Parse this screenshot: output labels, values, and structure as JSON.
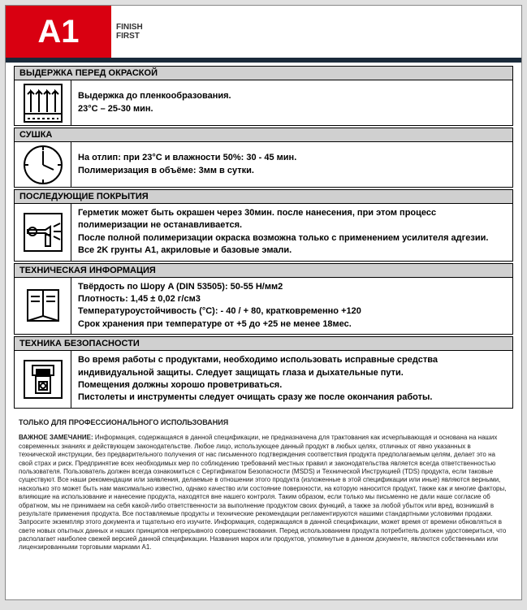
{
  "colors": {
    "brand_red": "#d90011",
    "dark_bar": "#1a2a3a",
    "section_header_bg": "#d0d0d0",
    "page_bg": "#ffffff",
    "body_bg": "#e0e0e0",
    "border": "#000000",
    "text": "#222222"
  },
  "logo": {
    "main": "A1",
    "tagline1": "FINISH",
    "tagline2": "FIRST"
  },
  "sections": [
    {
      "title": "ВЫДЕРЖКА ПЕРЕД ОКРАСКОЙ",
      "icon": "flash-off",
      "lines": [
        {
          "text": "Выдержка до пленкообразования.",
          "bold": true
        },
        {
          "text": " 23°C – 25-30 мин.",
          "bold": true
        }
      ]
    },
    {
      "title": "СУШКА",
      "icon": "clock",
      "lines": [
        {
          "text": "На отлип: при 23°C и влажности 50%: 30 - 45 мин.",
          "bold": true
        },
        {
          "text": "Полимеризация в объёме: 3мм в сутки.",
          "bold": true
        }
      ]
    },
    {
      "title": "ПОСЛЕДУЮЩИЕ ПОКРЫТИЯ",
      "icon": "spray-gun",
      "lines": [
        {
          "text": "Герметик может быть окрашен через 30мин. после нанесения, при этом процесс полимеризации не останавливается.",
          "bold": true
        },
        {
          "text": "После полной полимеризации окраска возможна только с применением усилителя адгезии.",
          "bold": true
        },
        {
          "text": "Все 2K грунты A1, акриловые и базовые эмали.",
          "bold": true
        }
      ]
    },
    {
      "title": "ТЕХНИЧЕСКАЯ ИНФОРМАЦИЯ",
      "icon": "data-sheet",
      "lines": [
        {
          "text": "Твёрдость по Шору A (DIN 53505): 50-55 Н/мм2",
          "bold": true
        },
        {
          "text": "Плотность: 1,45 ± 0,02 г/см3",
          "bold": true
        },
        {
          "text": "Температуроустойчивость (°C): - 40 / + 80, кратковременно +120",
          "bold": true
        },
        {
          "text": " Срок хранения при температуре от +5 до +25 не менее 18мес.",
          "bold": true
        }
      ]
    },
    {
      "title": "ТЕХНИКА БЕЗОПАСНОСТИ",
      "icon": "safety-mask",
      "lines": [
        {
          "text": "Во время работы с продуктами, необходимо использовать исправные средства индивидуальной защиты. Следует защищать глаза и дыхательные пути.",
          "bold": true
        },
        {
          "text": "Помещения должны хорошо проветриваться.",
          "bold": true
        },
        {
          "text": "Пистолеты и инструменты следует очищать сразу же после окончания работы.",
          "bold": true
        }
      ]
    }
  ],
  "footer": {
    "heading": "ТОЛЬКО ДЛЯ ПРОФЕССИОНАЛЬНОГО ИСПОЛЬЗОВАНИЯ",
    "note_label": "ВАЖНОЕ ЗАМЕЧАНИЕ:",
    "note_text": " Информация, содержащаяся в данной спецификации, не предназначена для трактования как исчерпывающая и основана на наших современных знаниях и действующем законодательстве. Любое лицо, использующее данный продукт в любых целях, отличных от явно указанных в технической инструкции, без предварительного получения от нас письменного подтверждения соответствия продукта предполагаемым целям, делает это на свой страх и риск. Предпринятие всех необходимых мер по соблюдению требований местных правил и законодательства является всегда ответственностью пользователя. Пользователь должен всегда ознакомиться с Сертификатом Безопасности (MSDS) и Технической Инструкцией (TDS) продукта, если таковые существуют. Все наши рекомендации или заявления, делаемые в отношении этого продукта (изложенные в этой спецификации или иные) являются верными, насколько это может быть нам максимально известно, однако качество или состояние поверхности, на которую наносится продукт, также как и многие факторы, влияющие на использование и нанесение продукта, находятся вне нашего контроля. Таким образом, если только мы письменно не дали наше согласие об обратном, мы не принимаем на себя какой-либо ответственности за выполнение продуктом своих функций, а также за любой убыток или вред, возникший в результате применения продукта. Все поставляемые продукты и технические рекомендации регламентируются нашими стандартными условиями продажи. Запросите экземпляр этого документа и тщательно его изучите. Информация, содержащаяся в данной спецификации, может время от времени обновляться в свете новых опытных данных и наших принципов непрерывного совершенствования. Перед использованием продукта потребитель должен удостовериться, что располагает наиболее свежей версией данной спецификации. Названия марок или продуктов, упомянутые в данном документе, являются собственными или лицензированными торговыми марками A1."
  }
}
